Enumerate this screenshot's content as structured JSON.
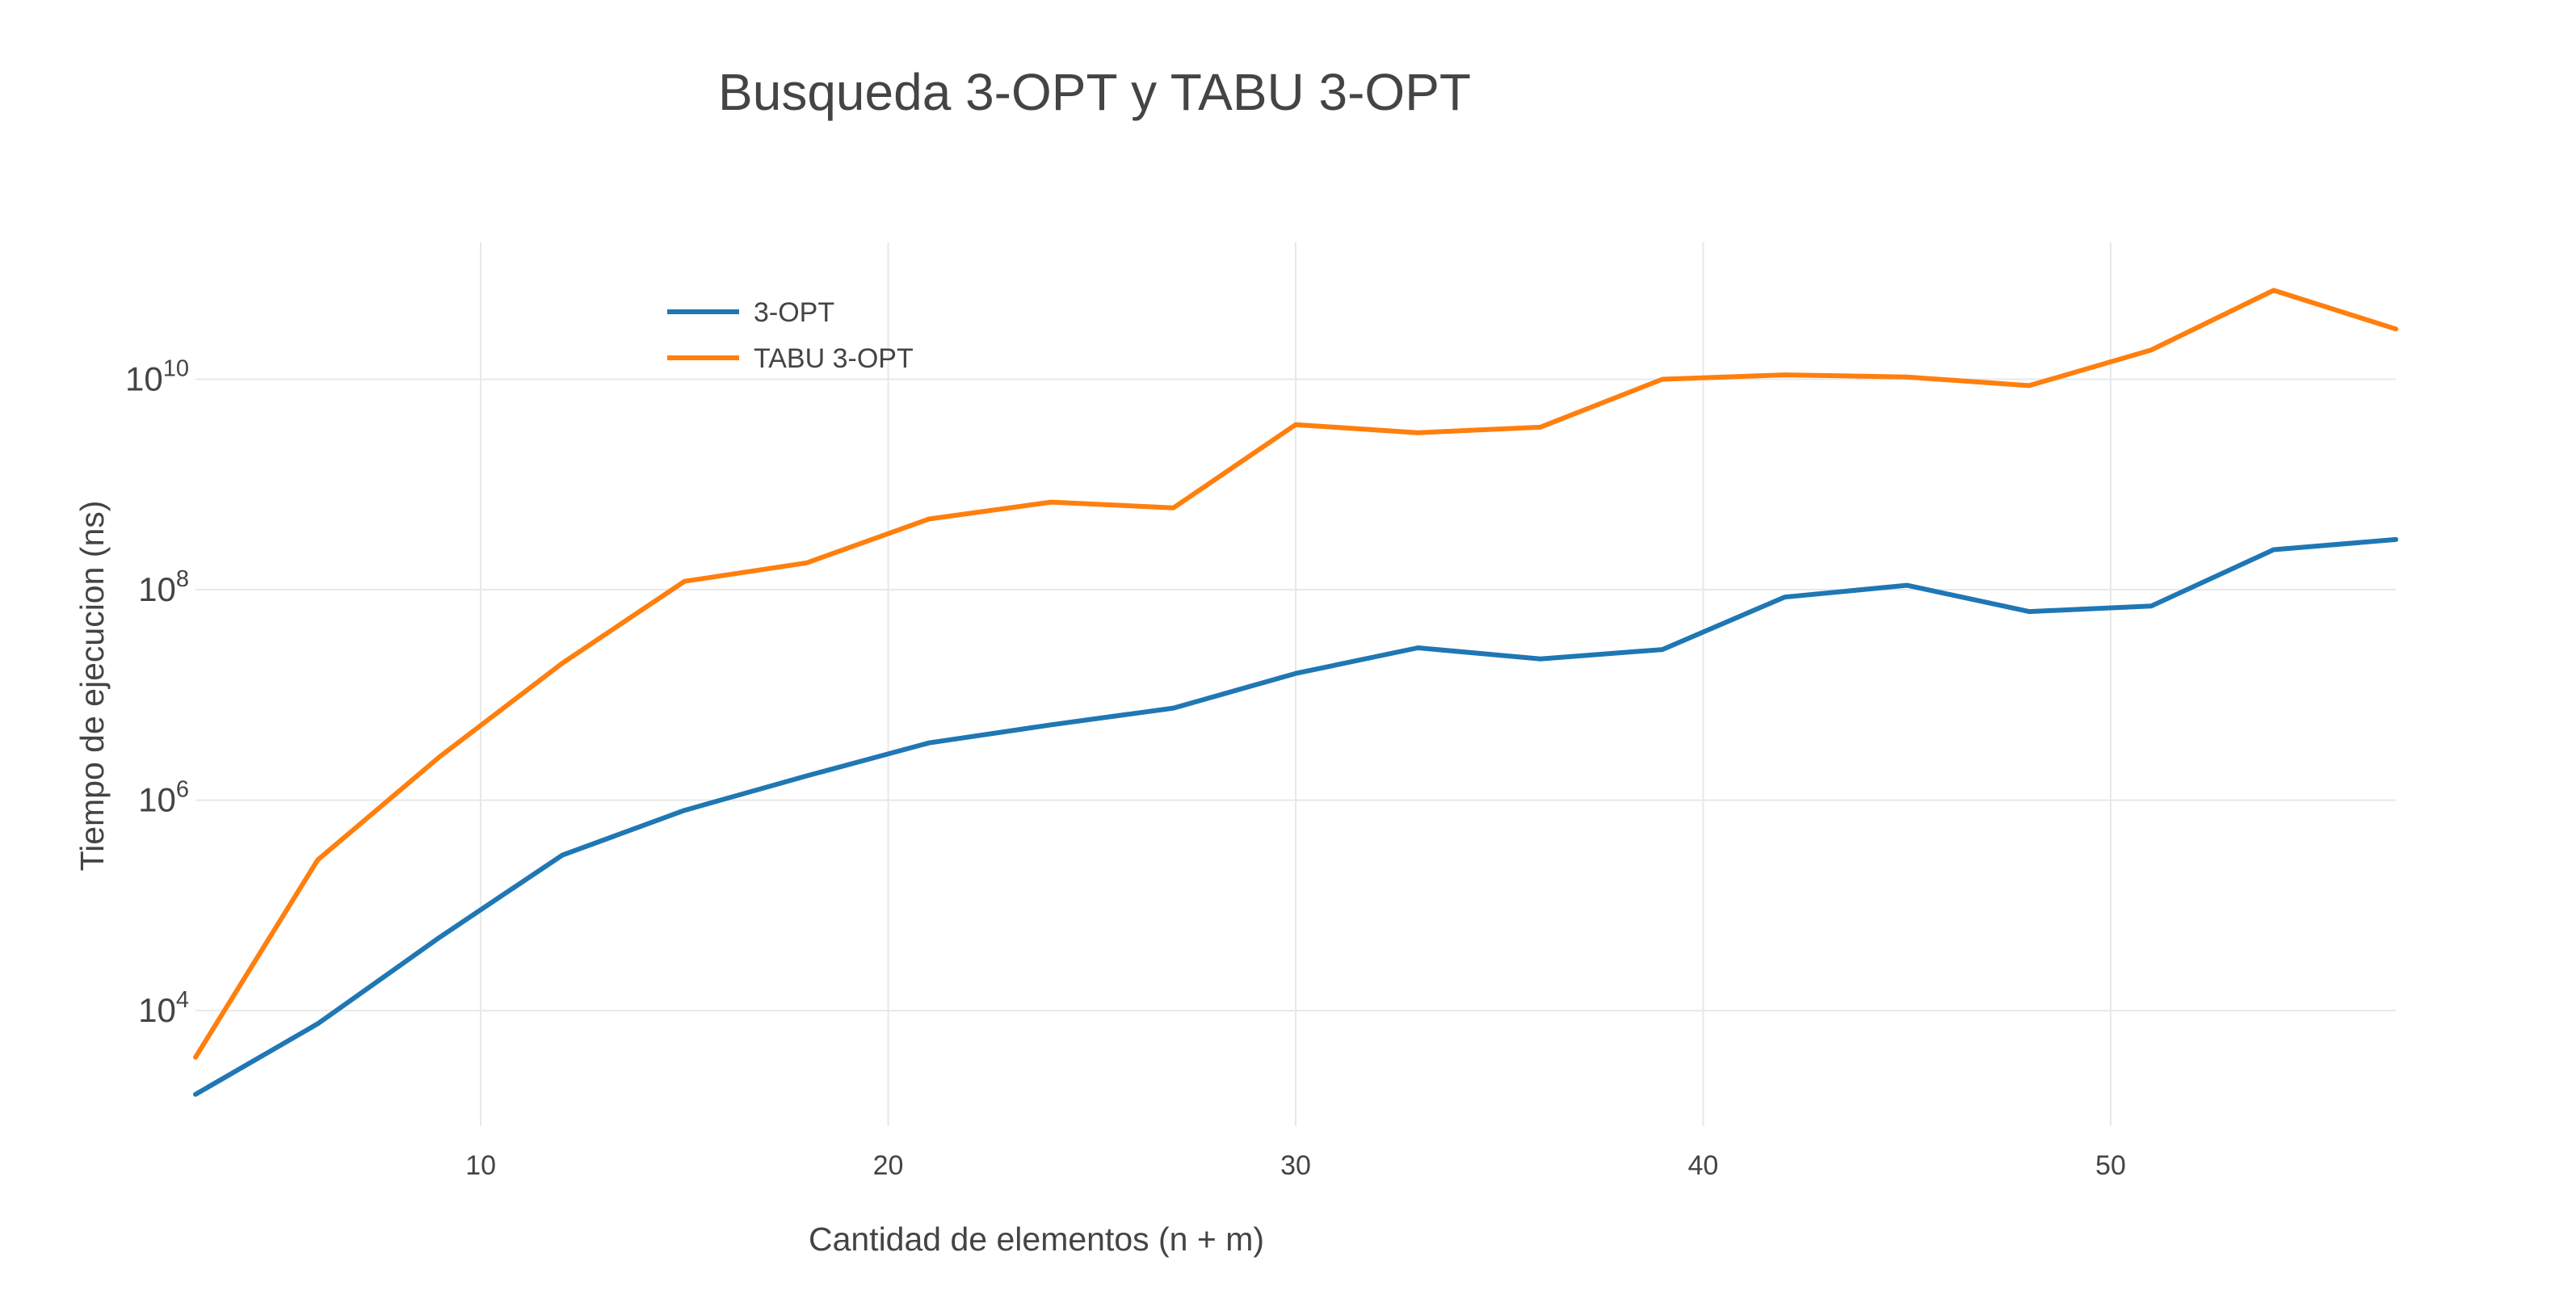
{
  "chart_data": {
    "type": "line",
    "title": "Busqueda 3-OPT y TABU 3-OPT",
    "xlabel": "Cantidad de elementos (n + m)",
    "ylabel": "Tiempo de ejecucion (ns)",
    "x": [
      3,
      6,
      9,
      12,
      15,
      18,
      21,
      24,
      27,
      30,
      33,
      36,
      39,
      42,
      45,
      48,
      51,
      54,
      57
    ],
    "xlim": [
      3,
      57
    ],
    "xticks": [
      10,
      20,
      30,
      40,
      50
    ],
    "xtick_labels": [
      "10",
      "20",
      "30",
      "40",
      "50"
    ],
    "y_scale": "log",
    "ylim": [
      800,
      200000000000
    ],
    "yticks": [
      10000,
      1000000,
      100000000,
      10000000000
    ],
    "ytick_bases": [
      "10",
      "10",
      "10",
      "10"
    ],
    "ytick_exponents": [
      "4",
      "6",
      "8",
      "10"
    ],
    "grid": true,
    "legend_position": "top-left",
    "series": [
      {
        "name": "3-OPT",
        "color": "#1f77b4",
        "values": [
          1600,
          7500,
          50000,
          300000,
          800000,
          1700000,
          3500000,
          5200000,
          7500000,
          16000000,
          28000000,
          22000000,
          27000000,
          85000000,
          110000000,
          62000000,
          70000000,
          240000000,
          300000000
        ]
      },
      {
        "name": "TABU 3-OPT",
        "color": "#ff7f0e",
        "values": [
          3600,
          270000,
          2600000,
          20000000,
          120000000,
          180000000,
          470000000,
          680000000,
          600000000,
          3700000000,
          3100000000,
          3500000000,
          10000000000,
          11000000000,
          10500000000,
          8700000000,
          19000000000,
          70000000000,
          30000000000
        ]
      }
    ]
  }
}
